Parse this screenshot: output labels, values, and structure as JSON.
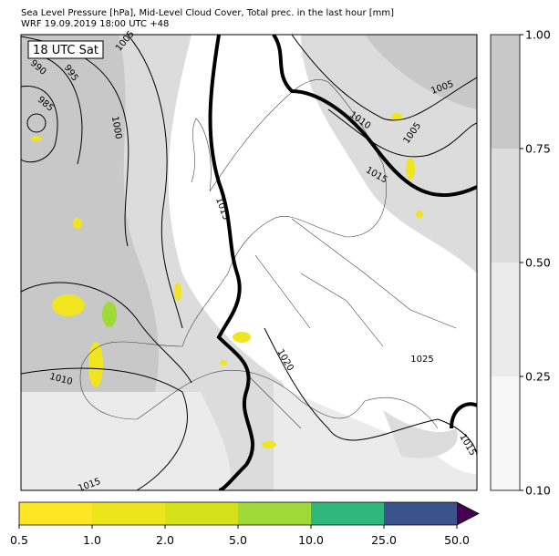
{
  "header": {
    "title_line_1": "Sea Level Pressure [hPa], Mid-Level Cloud Cover, Total prec. in the last hour [mm]",
    "title_line_2": "WRF 19.09.2019 18:00 UTC +48"
  },
  "map": {
    "time_label": "18 UTC Sat",
    "isobar_labels": [
      "1005",
      "990",
      "995",
      "985",
      "1000",
      "1010",
      "1005",
      "1005",
      "1015",
      "1015",
      "1020",
      "1025",
      "1010",
      "1015",
      "1015"
    ]
  },
  "cloud_colorbar": {
    "ticks": [
      "0.10",
      "0.25",
      "0.50",
      "0.75",
      "1.00"
    ]
  },
  "precip_colorbar": {
    "ticks": [
      "0.5",
      "1.0",
      "2.0",
      "5.0",
      "10.0",
      "25.0",
      "50.0"
    ]
  }
}
